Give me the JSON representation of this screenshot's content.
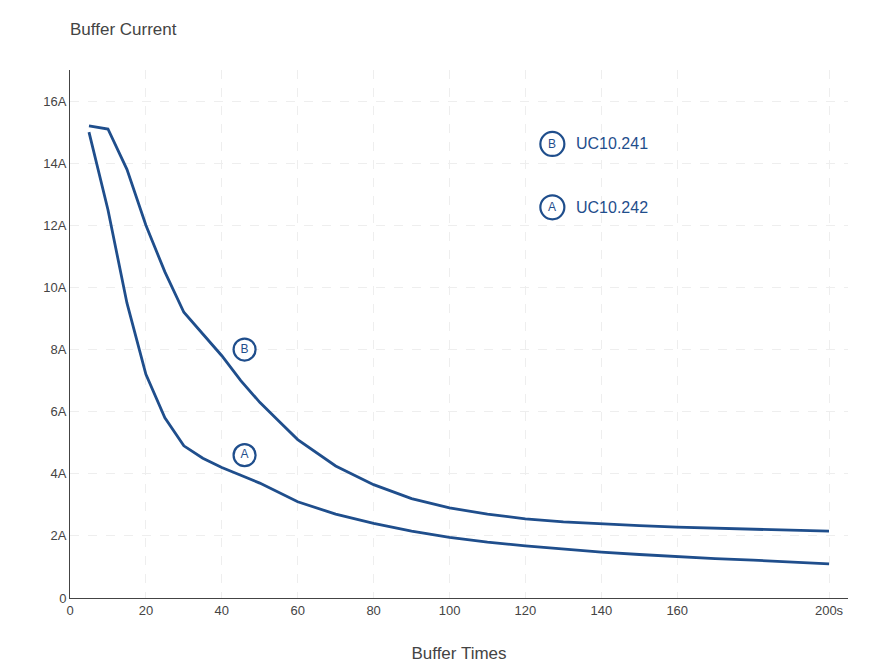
{
  "chart_data": {
    "type": "line",
    "title": "Buffer Current",
    "x_label": "Buffer Times",
    "xlim": [
      0,
      205
    ],
    "ylim": [
      0,
      17
    ],
    "xticks": [
      0,
      20,
      40,
      60,
      80,
      100,
      120,
      140,
      160,
      {
        "value": 200,
        "label": "200s"
      }
    ],
    "yticks": [
      0,
      {
        "value": 2,
        "label": "2A"
      },
      {
        "value": 4,
        "label": "4A"
      },
      {
        "value": 6,
        "label": "6A"
      },
      {
        "value": 8,
        "label": "8A"
      },
      {
        "value": 10,
        "label": "10A"
      },
      {
        "value": 12,
        "label": "12A"
      },
      {
        "value": 14,
        "label": "14A"
      },
      {
        "value": 16,
        "label": "16A"
      }
    ],
    "grid": true,
    "legend": "upper right",
    "series": [
      {
        "name": "UC10.241",
        "color": "#1F4E8C",
        "x": [
          5,
          10,
          15,
          20,
          25,
          30,
          35,
          40,
          45,
          50,
          55,
          60,
          70,
          80,
          90,
          100,
          110,
          120,
          130,
          140,
          150,
          160,
          170,
          180,
          190,
          200
        ],
        "values": [
          15.2,
          15.1,
          13.8,
          12.0,
          10.5,
          9.2,
          8.5,
          7.8,
          7.0,
          6.3,
          5.7,
          5.1,
          4.25,
          3.65,
          3.2,
          2.9,
          2.7,
          2.55,
          2.45,
          2.38,
          2.33,
          2.28,
          2.25,
          2.22,
          2.18,
          2.15
        ]
      },
      {
        "name": "UC10.242",
        "color": "#1F4E8C",
        "x": [
          5,
          10,
          15,
          20,
          25,
          30,
          35,
          40,
          45,
          50,
          60,
          70,
          80,
          90,
          100,
          110,
          120,
          130,
          140,
          150,
          160,
          170,
          180,
          190,
          200
        ],
        "values": [
          15.0,
          12.5,
          9.5,
          7.2,
          5.8,
          4.9,
          4.5,
          4.2,
          3.95,
          3.7,
          3.1,
          2.7,
          2.4,
          2.15,
          1.95,
          1.8,
          1.68,
          1.57,
          1.48,
          1.4,
          1.33,
          1.27,
          1.22,
          1.16,
          1.1
        ]
      }
    ],
    "annotations": [
      {
        "text": "B",
        "x": 46,
        "y": 8.0
      },
      {
        "text": "A",
        "x": 46,
        "y": 4.6
      }
    ]
  }
}
